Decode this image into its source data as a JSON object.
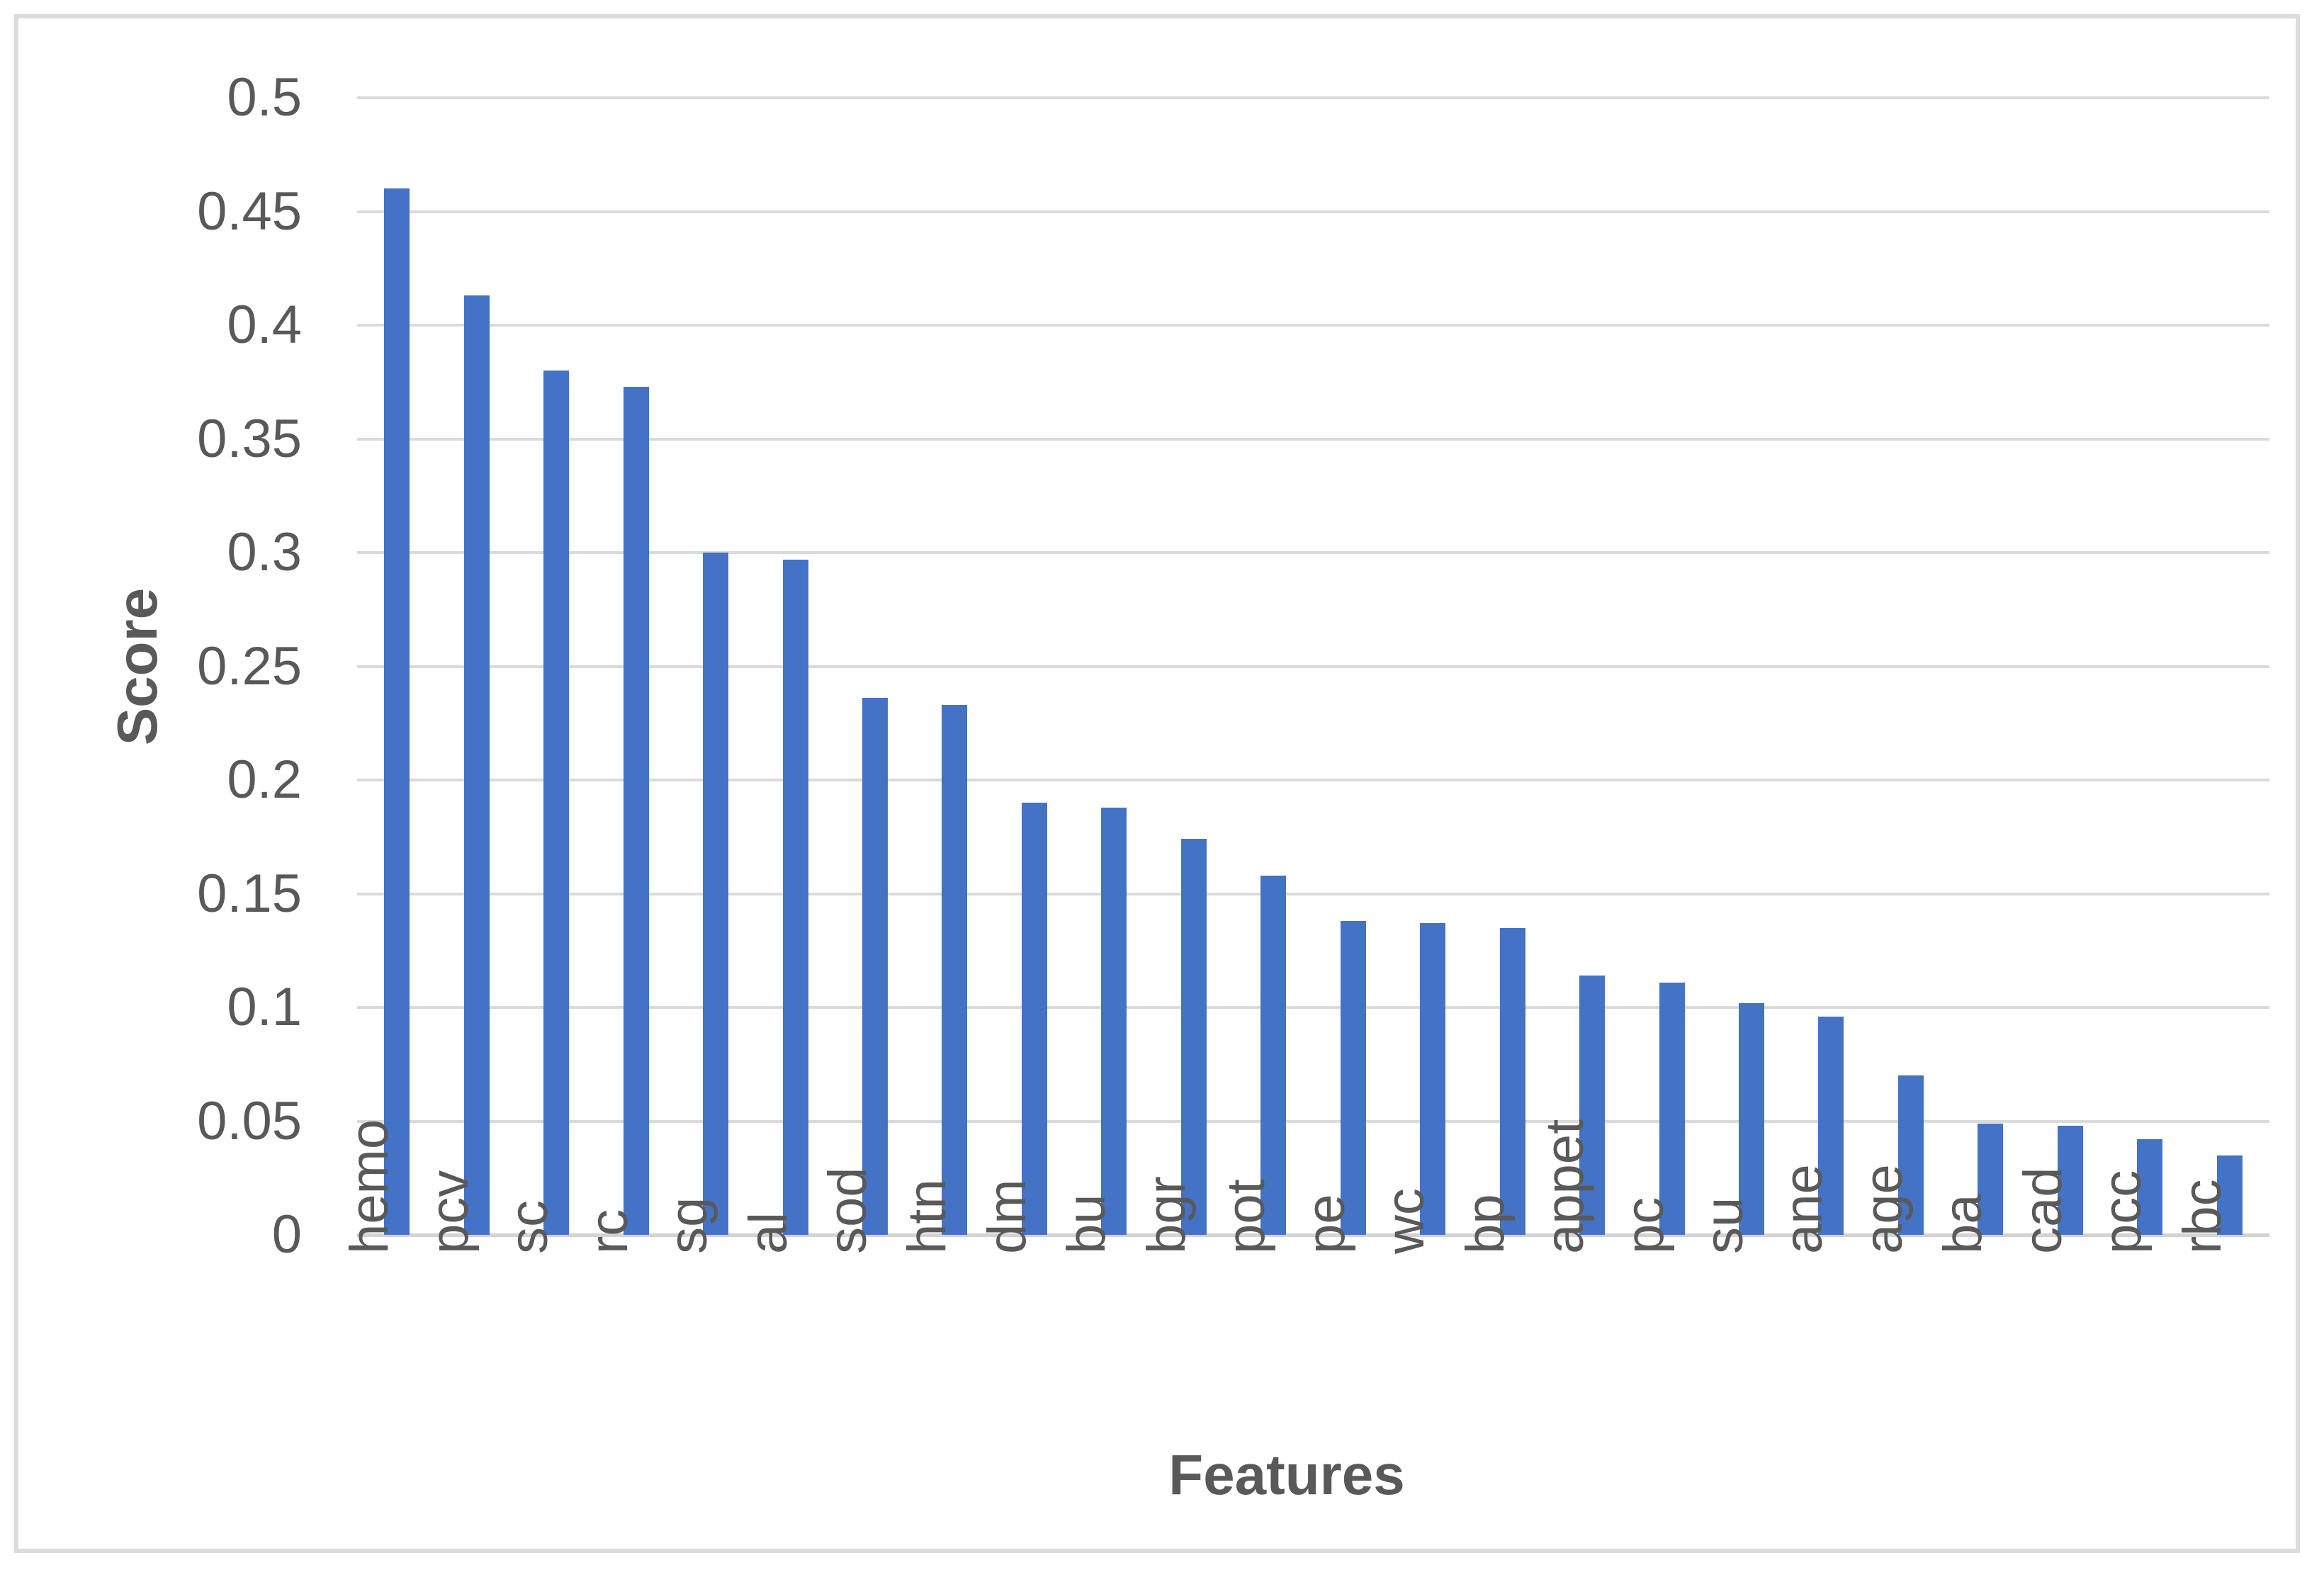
{
  "chart_data": {
    "type": "bar",
    "title": "",
    "xlabel": "Features",
    "ylabel": "Score",
    "categories": [
      "hemo",
      "pcv",
      "sc",
      "rc",
      "sg",
      "al",
      "sod",
      "htn",
      "dm",
      "bu",
      "bgr",
      "pot",
      "pe",
      "wc",
      "bp",
      "appet",
      "pc",
      "su",
      "ane",
      "age",
      "ba",
      "cad",
      "pcc",
      "rbc"
    ],
    "values": [
      0.46,
      0.413,
      0.38,
      0.373,
      0.3,
      0.297,
      0.236,
      0.233,
      0.19,
      0.188,
      0.174,
      0.158,
      0.138,
      0.137,
      0.135,
      0.114,
      0.111,
      0.102,
      0.096,
      0.07,
      0.049,
      0.048,
      0.042,
      0.035
    ],
    "ylim": [
      0,
      0.5
    ],
    "ytick_step": 0.05,
    "ytick_labels": [
      "0",
      "0.05",
      "0.1",
      "0.15",
      "0.2",
      "0.25",
      "0.3",
      "0.35",
      "0.4",
      "0.45",
      "0.5"
    ],
    "grid": true,
    "legend_position": "none",
    "colors": {
      "bar": "#4472C4",
      "gridline": "#DADADA",
      "axis_line": "#D3D3D3",
      "text": "#595959",
      "frame_border": "#DBDBDB"
    }
  }
}
